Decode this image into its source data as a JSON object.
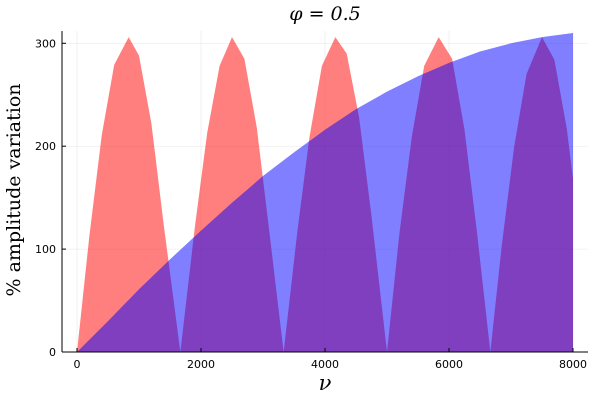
{
  "chart_data": {
    "type": "area",
    "title": "φ = 0.5",
    "xlabel": "ν",
    "ylabel": "% amplitude variation",
    "xlim": [
      0,
      8000
    ],
    "ylim": [
      0,
      310
    ],
    "x_ticks": [
      0,
      2000,
      4000,
      6000,
      8000
    ],
    "x_tick_labels": [
      "0",
      "2000",
      "4000",
      "6000",
      "8000"
    ],
    "y_ticks": [
      0,
      100,
      200,
      300
    ],
    "y_tick_labels": [
      "0",
      "100",
      "200",
      "300"
    ],
    "grid": true,
    "legend": "none",
    "series": [
      {
        "color": "#ff0000",
        "opacity": 0.5,
        "x": [
          0,
          200,
          400,
          600,
          833,
          1000,
          1200,
          1400,
          1667,
          1900,
          2100,
          2300,
          2500,
          2700,
          2900,
          3100,
          3333,
          3550,
          3750,
          3950,
          4167,
          4350,
          4550,
          4750,
          5000,
          5200,
          5400,
          5600,
          5833,
          6050,
          6250,
          6450,
          6667,
          6850,
          7050,
          7250,
          7500,
          7700,
          7900,
          8000
        ],
        "values": [
          0,
          113,
          211,
          279,
          306,
          288,
          222,
          123,
          0,
          121,
          213,
          278,
          306,
          285,
          218,
          118,
          0,
          115,
          209,
          278,
          306,
          290,
          228,
          132,
          0,
          115,
          209,
          278,
          306,
          285,
          216,
          117,
          0,
          103,
          199,
          270,
          306,
          284,
          217,
          168
        ]
      },
      {
        "color": "#0000ff",
        "opacity": 0.5,
        "x": [
          0,
          500,
          1000,
          1500,
          2000,
          2500,
          3000,
          3500,
          4000,
          4500,
          5000,
          5500,
          6000,
          6500,
          7000,
          7500,
          8000
        ],
        "values": [
          0,
          30,
          61,
          90,
          118,
          145,
          171,
          194,
          216,
          236,
          253,
          268,
          281,
          292,
          300,
          306,
          310
        ]
      }
    ]
  }
}
